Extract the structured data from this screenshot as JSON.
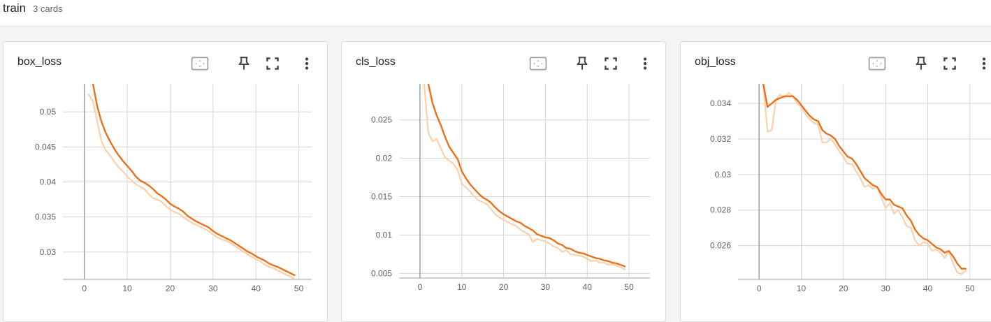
{
  "header": {
    "title": "train",
    "count": "3 cards"
  },
  "colors": {
    "raw": "#fdd0ac",
    "smoothed": "#e8711a",
    "grid": "#d6d6d6",
    "axis": "#9e9e9e"
  },
  "toolbar_icons": [
    "fit-domain-icon",
    "pin-icon",
    "fullscreen-icon",
    "more-vert-icon"
  ],
  "chart_data": [
    {
      "type": "line",
      "title": "box_loss",
      "xlabel": "",
      "ylabel": "",
      "xlim": [
        -5,
        53
      ],
      "ylim": [
        0.0261,
        0.054
      ],
      "xticks": [
        0,
        10,
        20,
        30,
        40,
        50
      ],
      "yticks": [
        0.03,
        0.035,
        0.04,
        0.045,
        0.05
      ],
      "ytick_labels": [
        "0.03",
        "0.035",
        "0.04",
        "0.045",
        "0.05"
      ],
      "grid": true,
      "series": [
        {
          "role": "raw",
          "x": [
            1,
            2,
            3,
            4,
            5,
            6,
            7,
            8,
            9,
            10,
            11,
            12,
            13,
            14,
            15,
            16,
            17,
            18,
            19,
            20,
            21,
            22,
            23,
            24,
            25,
            26,
            27,
            28,
            29,
            30,
            31,
            32,
            33,
            34,
            35,
            36,
            37,
            38,
            39,
            40,
            41,
            42,
            43,
            44,
            45,
            46,
            47,
            48,
            49
          ],
          "y": [
            0.0525,
            0.0515,
            0.0486,
            0.0458,
            0.0445,
            0.0438,
            0.0429,
            0.0421,
            0.0415,
            0.0408,
            0.0402,
            0.0397,
            0.0393,
            0.039,
            0.0383,
            0.0377,
            0.0375,
            0.0372,
            0.0366,
            0.0361,
            0.0357,
            0.0355,
            0.035,
            0.0346,
            0.0342,
            0.0339,
            0.0336,
            0.0333,
            0.033,
            0.0325,
            0.0321,
            0.0318,
            0.0316,
            0.0313,
            0.0309,
            0.0305,
            0.0301,
            0.0297,
            0.0293,
            0.029,
            0.0287,
            0.0282,
            0.0279,
            0.0277,
            0.0274,
            0.0271,
            0.0268,
            0.0265,
            0.0262
          ]
        },
        {
          "role": "smoothed",
          "x": [
            2,
            3,
            4,
            5,
            6,
            7,
            8,
            9,
            10,
            11,
            12,
            13,
            14,
            15,
            16,
            17,
            18,
            19,
            20,
            21,
            22,
            23,
            24,
            25,
            26,
            27,
            28,
            29,
            30,
            31,
            32,
            33,
            34,
            35,
            36,
            37,
            38,
            39,
            40,
            41,
            42,
            43,
            44,
            45,
            46,
            47,
            48,
            49
          ],
          "y": [
            0.054,
            0.0508,
            0.0486,
            0.047,
            0.0458,
            0.0447,
            0.0438,
            0.043,
            0.0423,
            0.0416,
            0.0408,
            0.0402,
            0.0399,
            0.0395,
            0.039,
            0.0384,
            0.038,
            0.0375,
            0.0369,
            0.0365,
            0.0362,
            0.0358,
            0.0352,
            0.0348,
            0.0344,
            0.0341,
            0.0338,
            0.0335,
            0.033,
            0.0326,
            0.0323,
            0.032,
            0.0317,
            0.0313,
            0.0309,
            0.0305,
            0.0301,
            0.0298,
            0.0294,
            0.0291,
            0.0288,
            0.0284,
            0.0281,
            0.0279,
            0.0276,
            0.0273,
            0.027,
            0.0267
          ]
        }
      ]
    },
    {
      "type": "line",
      "title": "cls_loss",
      "xlabel": "",
      "ylabel": "",
      "xlim": [
        -5,
        55
      ],
      "ylim": [
        0.0044,
        0.0297
      ],
      "xticks": [
        0,
        10,
        20,
        30,
        40,
        50
      ],
      "yticks": [
        0.005,
        0.01,
        0.015,
        0.02,
        0.025
      ],
      "ytick_labels": [
        "0.005",
        "0.01",
        "0.015",
        "0.02",
        "0.025"
      ],
      "grid": true,
      "series": [
        {
          "role": "raw",
          "x": [
            1,
            2,
            3,
            4,
            5,
            6,
            7,
            8,
            9,
            10,
            11,
            12,
            13,
            14,
            15,
            16,
            17,
            18,
            19,
            20,
            21,
            22,
            23,
            24,
            25,
            26,
            27,
            28,
            29,
            30,
            31,
            32,
            33,
            34,
            35,
            36,
            37,
            38,
            39,
            40,
            41,
            42,
            43,
            44,
            45,
            46,
            47,
            48,
            49
          ],
          "y": [
            0.0297,
            0.0233,
            0.0222,
            0.0225,
            0.0213,
            0.0201,
            0.0197,
            0.0193,
            0.0185,
            0.0167,
            0.0162,
            0.0157,
            0.015,
            0.0145,
            0.0143,
            0.014,
            0.0134,
            0.0127,
            0.0123,
            0.012,
            0.0117,
            0.0114,
            0.0112,
            0.0107,
            0.0104,
            0.0101,
            0.0091,
            0.0095,
            0.0093,
            0.0092,
            0.0089,
            0.0085,
            0.0083,
            0.0078,
            0.008,
            0.0075,
            0.0074,
            0.0073,
            0.0072,
            0.0069,
            0.0066,
            0.0067,
            0.0064,
            0.0064,
            0.0061,
            0.0062,
            0.006,
            0.0058,
            0.0055
          ]
        },
        {
          "role": "smoothed",
          "x": [
            2,
            3,
            4,
            5,
            6,
            7,
            8,
            9,
            10,
            11,
            12,
            13,
            14,
            15,
            16,
            17,
            18,
            19,
            20,
            21,
            22,
            23,
            24,
            25,
            26,
            27,
            28,
            29,
            30,
            31,
            32,
            33,
            34,
            35,
            36,
            37,
            38,
            39,
            40,
            41,
            42,
            43,
            44,
            45,
            46,
            47,
            48,
            49
          ],
          "y": [
            0.0297,
            0.0272,
            0.0256,
            0.0243,
            0.0228,
            0.0215,
            0.0207,
            0.0199,
            0.0183,
            0.0174,
            0.0166,
            0.016,
            0.0154,
            0.0149,
            0.0146,
            0.0142,
            0.0136,
            0.0131,
            0.0127,
            0.0124,
            0.0121,
            0.0118,
            0.0116,
            0.0112,
            0.0109,
            0.0106,
            0.0101,
            0.0099,
            0.0097,
            0.0096,
            0.0093,
            0.0089,
            0.0087,
            0.0083,
            0.0082,
            0.0079,
            0.0077,
            0.0076,
            0.0074,
            0.0072,
            0.007,
            0.0069,
            0.0067,
            0.0066,
            0.0064,
            0.0063,
            0.0061,
            0.0059
          ]
        }
      ]
    },
    {
      "type": "line",
      "title": "obj_loss",
      "xlabel": "",
      "ylabel": "",
      "xlim": [
        -5,
        55
      ],
      "ylim": [
        0.0241,
        0.0351
      ],
      "xticks": [
        0,
        10,
        20,
        30,
        40,
        50
      ],
      "yticks": [
        0.026,
        0.028,
        0.03,
        0.032,
        0.034
      ],
      "ytick_labels": [
        "0.026",
        "0.028",
        "0.03",
        "0.032",
        "0.034"
      ],
      "grid": true,
      "series": [
        {
          "role": "raw",
          "x": [
            1,
            2,
            3,
            4,
            5,
            6,
            7,
            8,
            9,
            10,
            11,
            12,
            13,
            14,
            15,
            16,
            17,
            18,
            19,
            20,
            21,
            22,
            23,
            24,
            25,
            26,
            27,
            28,
            29,
            30,
            31,
            32,
            33,
            34,
            35,
            36,
            37,
            38,
            39,
            40,
            41,
            42,
            43,
            44,
            45,
            46,
            47,
            48,
            49
          ],
          "y": [
            0.0351,
            0.0324,
            0.0325,
            0.0342,
            0.0345,
            0.0343,
            0.0346,
            0.0344,
            0.034,
            0.0338,
            0.0334,
            0.0331,
            0.0329,
            0.0328,
            0.0318,
            0.0318,
            0.032,
            0.0317,
            0.0313,
            0.031,
            0.0306,
            0.0306,
            0.0302,
            0.0298,
            0.0293,
            0.0294,
            0.0292,
            0.0293,
            0.0287,
            0.0281,
            0.0284,
            0.0278,
            0.028,
            0.0276,
            0.0271,
            0.027,
            0.0263,
            0.026,
            0.0262,
            0.0261,
            0.0257,
            0.0258,
            0.0256,
            0.0253,
            0.0257,
            0.025,
            0.0245,
            0.0244,
            0.0246
          ]
        },
        {
          "role": "smoothed",
          "x": [
            1,
            2,
            3,
            4,
            5,
            6,
            7,
            8,
            9,
            10,
            11,
            12,
            13,
            14,
            15,
            16,
            17,
            18,
            19,
            20,
            21,
            22,
            23,
            24,
            25,
            26,
            27,
            28,
            29,
            30,
            31,
            32,
            33,
            34,
            35,
            36,
            37,
            38,
            39,
            40,
            41,
            42,
            43,
            44,
            45,
            46,
            47,
            48,
            49
          ],
          "y": [
            0.0351,
            0.0338,
            0.034,
            0.0342,
            0.0343,
            0.0344,
            0.0344,
            0.0344,
            0.0342,
            0.0339,
            0.0336,
            0.0333,
            0.0331,
            0.033,
            0.0325,
            0.0323,
            0.0322,
            0.032,
            0.0316,
            0.0313,
            0.031,
            0.0309,
            0.0306,
            0.0302,
            0.0298,
            0.0296,
            0.0294,
            0.0293,
            0.0289,
            0.0286,
            0.0286,
            0.0283,
            0.0282,
            0.0281,
            0.0277,
            0.0274,
            0.0269,
            0.0266,
            0.0264,
            0.0263,
            0.0261,
            0.0259,
            0.0258,
            0.0256,
            0.0257,
            0.0254,
            0.025,
            0.0247,
            0.0247
          ]
        }
      ]
    }
  ]
}
